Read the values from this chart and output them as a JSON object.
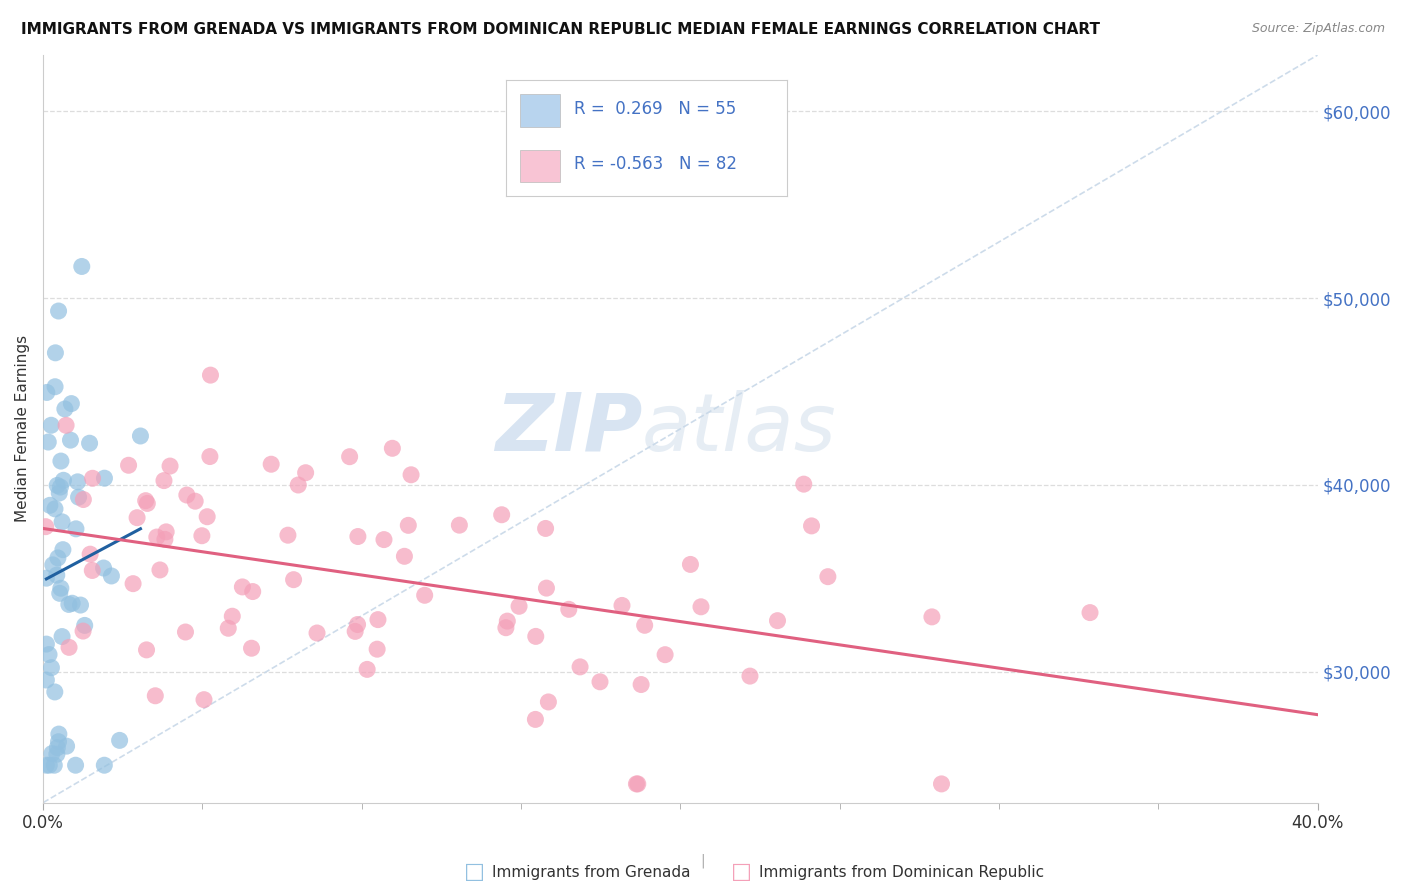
{
  "title": "IMMIGRANTS FROM GRENADA VS IMMIGRANTS FROM DOMINICAN REPUBLIC MEDIAN FEMALE EARNINGS CORRELATION CHART",
  "source": "Source: ZipAtlas.com",
  "xlabel_grenada": "Immigrants from Grenada",
  "xlabel_dr": "Immigrants from Dominican Republic",
  "ylabel": "Median Female Earnings",
  "xlim": [
    0.0,
    0.4
  ],
  "ylim": [
    23000,
    63000
  ],
  "xtick_vals": [
    0.0,
    0.4
  ],
  "xtick_labels": [
    "0.0%",
    "40.0%"
  ],
  "yticks": [
    30000,
    40000,
    50000,
    60000
  ],
  "ytick_labels": [
    "$30,000",
    "$40,000",
    "$50,000",
    "$60,000"
  ],
  "grenada_color": "#92c0e0",
  "dr_color": "#f4a0b8",
  "grenada_line_color": "#2060a0",
  "dr_line_color": "#e06080",
  "R_grenada": 0.269,
  "N_grenada": 55,
  "R_dr": -0.563,
  "N_dr": 82,
  "legend_box_grenada": "#b8d4ee",
  "legend_box_dr": "#f8c4d4",
  "watermark_zip": "ZIP",
  "watermark_atlas": "atlas",
  "background_color": "#ffffff",
  "grid_color": "#dddddd",
  "refline_color": "#c8d8e8",
  "ytick_color": "#4472c4",
  "title_color": "#111111",
  "source_color": "#888888"
}
